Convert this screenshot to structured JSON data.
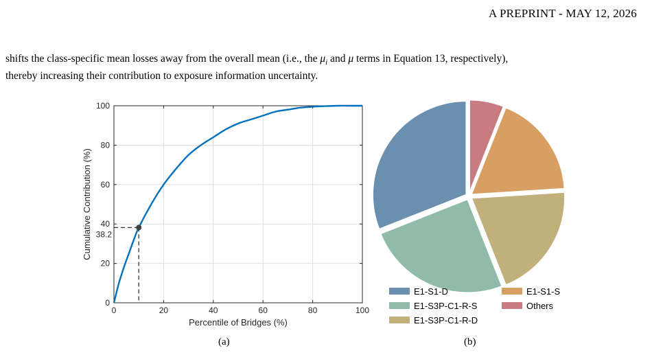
{
  "header": {
    "text": "A PREPRINT - MAY 12, 2026"
  },
  "paragraph": {
    "line1_pre": "shifts the class-specific mean losses away from the overall mean (i.e., the ",
    "mu_i": "μ",
    "mu_i_sub": "i",
    "line1_mid": " and ",
    "mu": "μ",
    "line1_post": " terms in Equation 13, respectively),",
    "line2": "thereby increasing their contribution to exposure information uncertainty."
  },
  "figures": {
    "caption_a": "(a)",
    "caption_b": "(b)"
  },
  "chart_data": [
    {
      "type": "line",
      "title": "",
      "xlabel": "Percentile of Bridges (%)",
      "ylabel": "Cumulative Contribution (%)",
      "xlim": [
        0,
        100
      ],
      "ylim": [
        0,
        100
      ],
      "x_ticks": [
        0,
        20,
        40,
        60,
        80,
        100
      ],
      "y_ticks": [
        0,
        20,
        40,
        60,
        80,
        100
      ],
      "grid": true,
      "line_color": "#0072BD",
      "series": [
        {
          "x": [
            0,
            2,
            4,
            6,
            8,
            10,
            15,
            20,
            25,
            30,
            35,
            40,
            45,
            50,
            55,
            60,
            65,
            70,
            75,
            80,
            85,
            90,
            95,
            100
          ],
          "values": [
            0,
            10,
            18,
            25,
            32,
            38.2,
            50,
            60,
            68,
            75,
            80,
            84,
            88,
            91,
            93,
            95,
            97,
            98,
            99,
            99.5,
            99.8,
            100,
            100,
            100
          ]
        }
      ],
      "marker": {
        "x": 10,
        "y": 38.2,
        "label": "38.2"
      }
    },
    {
      "type": "pie",
      "legend_placement": "bottom",
      "slices": [
        {
          "label": "E1-S1-D",
          "value": 31,
          "color": "#6A8FAF"
        },
        {
          "label": "E1-S3P-C1-R-S",
          "value": 25,
          "color": "#8FBBA8"
        },
        {
          "label": "E1-S3P-C1-R-D",
          "value": 20,
          "color": "#C2B07C"
        },
        {
          "label": "E1-S1-S",
          "value": 18,
          "color": "#D89F62"
        },
        {
          "label": "Others",
          "value": 6,
          "color": "#C97B82"
        }
      ],
      "legend_order": [
        "E1-S1-D",
        "E1-S1-S",
        "E1-S3P-C1-R-S",
        "Others",
        "E1-S3P-C1-R-D"
      ]
    }
  ]
}
